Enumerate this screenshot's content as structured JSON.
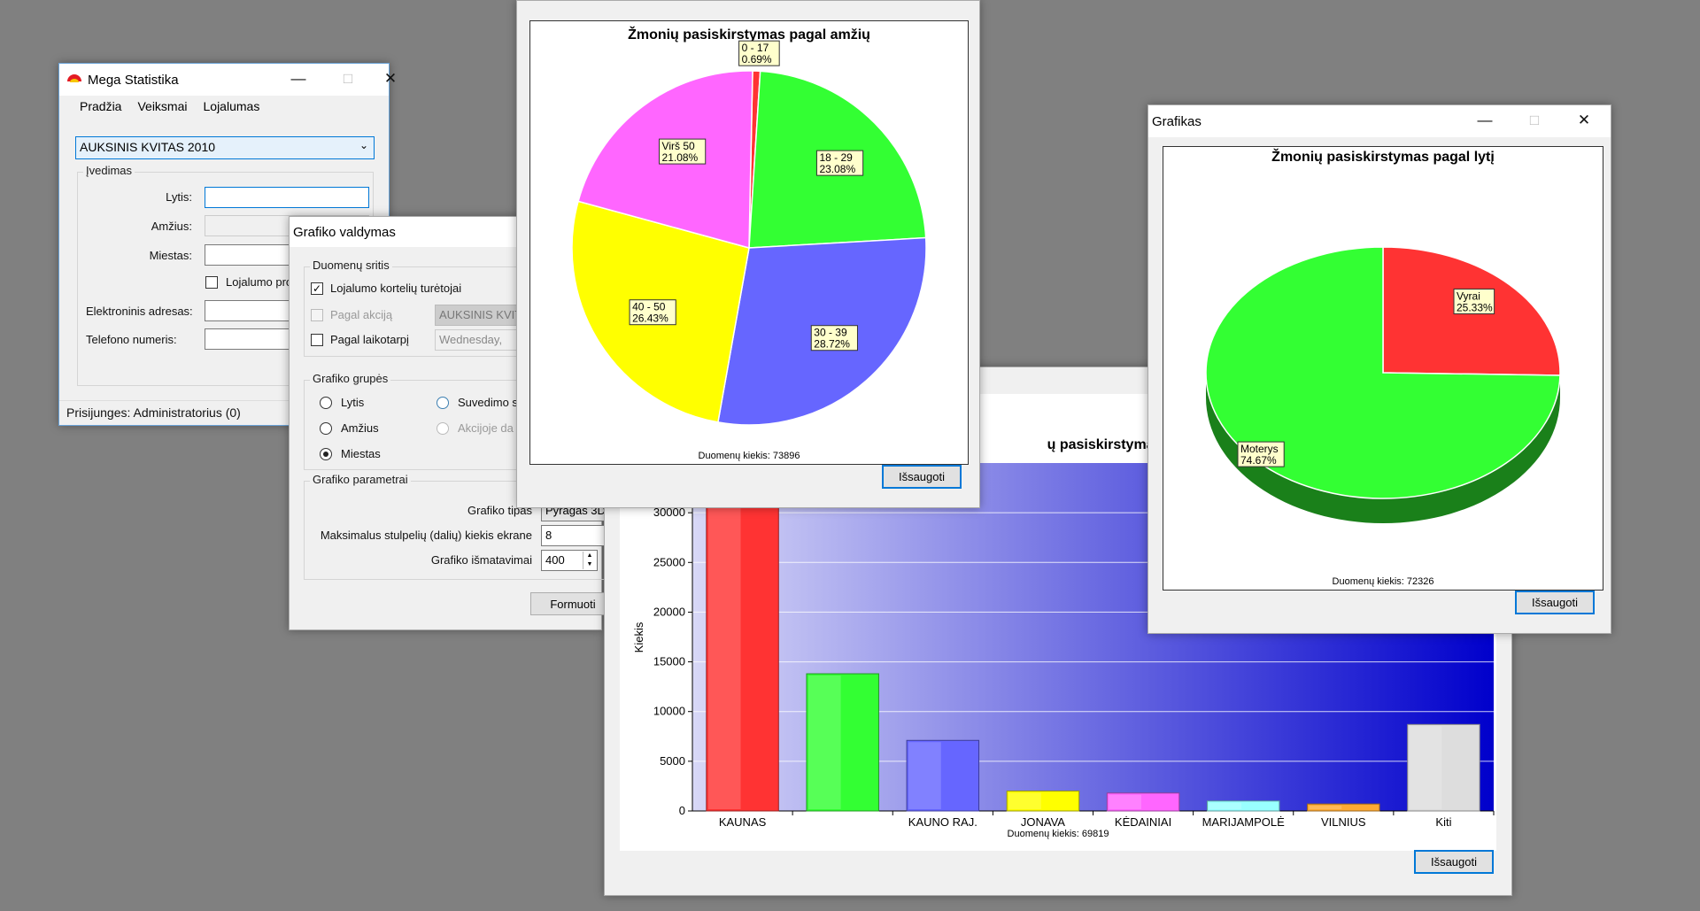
{
  "main_window": {
    "title": "Mega Statistika",
    "menu": [
      "Pradžia",
      "Veiksmai",
      "Lojalumas"
    ],
    "campaign_select": "AUKSINIS KVITAS 2010",
    "input_group": "Įvedimas",
    "gender_label": "Lytis:",
    "age_label": "Amžius:",
    "city_label": "Miestas:",
    "loyalty_checkbox": "Lojalumo pro",
    "email_label": "Elektroninis adresas:",
    "phone_label": "Telefono numeris:",
    "status": "Prisijunges: Administratorius (0)"
  },
  "control_window": {
    "title": "Grafiko valdymas",
    "data_area_group": "Duomenų sritis",
    "loyalty_cards_checkbox": "Lojalumo kortelių turėtojai",
    "by_campaign_checkbox": "Pagal akciją",
    "campaign_value": "AUKSINIS KVIT",
    "by_period_checkbox": "Pagal laikotarpį",
    "period_value": "Wednesday,",
    "groups_group": "Grafiko grupės",
    "radio_gender": "Lytis",
    "radio_age": "Amžius",
    "radio_city": "Miestas",
    "radio_summary": "Suvedimo s",
    "radio_campaign": "Akcijoje da",
    "params_group": "Grafiko parametrai",
    "chart_type_label": "Grafiko tipas",
    "chart_type_value": "Pyragas 3D",
    "max_bars_label": "Maksimalus stulpelių (dalių) kiekis ekrane",
    "max_bars_value": "8",
    "size_label": "Grafiko išmatavimai",
    "size_value": "400",
    "generate_button": "Formuoti"
  },
  "age_window": {
    "save_button": "Išsaugoti",
    "chart_data": {
      "type": "pie",
      "title": "Žmonių pasiskirstymas pagal amžių",
      "footer": "Duomenų kiekis: 73896",
      "slices": [
        {
          "label": "0 - 17",
          "pct_label": "0.69%",
          "value": 0.69,
          "color": "#ff3333"
        },
        {
          "label": "18 - 29",
          "pct_label": "23.08%",
          "value": 23.08,
          "color": "#33ff33"
        },
        {
          "label": "30 - 39",
          "pct_label": "28.72%",
          "value": 28.72,
          "color": "#6666ff"
        },
        {
          "label": "40 - 50",
          "pct_label": "26.43%",
          "value": 26.43,
          "color": "#ffff00"
        },
        {
          "label": "Virš 50",
          "pct_label": "21.08%",
          "value": 21.08,
          "color": "#ff66ff"
        }
      ]
    }
  },
  "gender_window": {
    "title": "Grafikas",
    "save_button": "Išsaugoti",
    "chart_data": {
      "type": "pie",
      "title": "Žmonių pasiskirstymas pagal lytį",
      "footer": "Duomenų kiekis: 72326",
      "slices": [
        {
          "label": "Vyrai",
          "pct_label": "25.33%",
          "value": 25.33,
          "color": "#ff3333"
        },
        {
          "label": "Moterys",
          "pct_label": "74.67%",
          "value": 74.67,
          "color": "#33ff33"
        }
      ]
    }
  },
  "city_window": {
    "save_button": "Išsaugoti",
    "chart_data": {
      "type": "bar",
      "title": "ų pasiskirstymas pagal m",
      "ylabel": "Kiekis",
      "footer": "Duomenų kiekis: 69819",
      "ylim": [
        0,
        35000
      ],
      "yticks": [
        0,
        5000,
        10000,
        15000,
        20000,
        25000,
        30000
      ],
      "categories": [
        "KAUNAS",
        "",
        "KAUNO RAJ.",
        "JONAVA",
        "KĖDAINIAI",
        "MARIJAMPOLĖ",
        "VILNIUS",
        "Kiti"
      ],
      "values": [
        33500,
        13800,
        7100,
        2000,
        1800,
        1000,
        700,
        8700
      ],
      "colors": [
        "#ff3333",
        "#33ff33",
        "#6666ff",
        "#ffff00",
        "#ff66ff",
        "#99ffff",
        "#ffaa33",
        "#dddddd"
      ]
    }
  }
}
